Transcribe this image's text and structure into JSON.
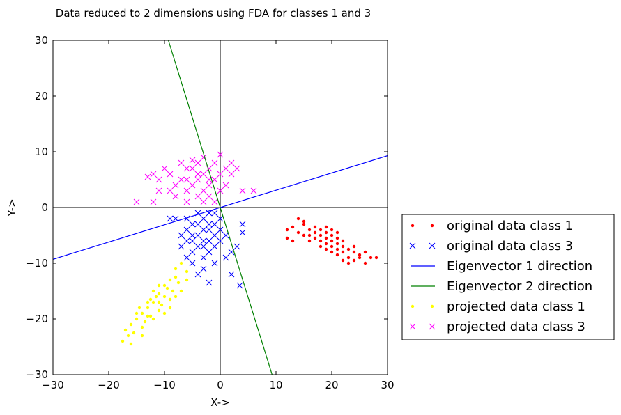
{
  "chart_data": {
    "type": "scatter",
    "title": "Data reduced to 2 dimensions using FDA for classes 1 and 3",
    "xlabel": "X->",
    "ylabel": "Y->",
    "xlim": [
      -30,
      30
    ],
    "ylim": [
      -30,
      30
    ],
    "xticks": [
      -30,
      -20,
      -10,
      0,
      10,
      20,
      30
    ],
    "yticks": [
      -30,
      -20,
      -10,
      0,
      10,
      20,
      30
    ],
    "grid": false,
    "legend_position": "outside-right",
    "series": [
      {
        "name": "original data class 1",
        "kind": "scatter",
        "marker": "dot",
        "color": "#ff0000",
        "points": [
          [
            12,
            -4
          ],
          [
            13,
            -3.5
          ],
          [
            14,
            -4.5
          ],
          [
            15,
            -3
          ],
          [
            15,
            -5
          ],
          [
            16,
            -4
          ],
          [
            16,
            -6
          ],
          [
            17,
            -4.5
          ],
          [
            17,
            -5.5
          ],
          [
            18,
            -5
          ],
          [
            18,
            -6
          ],
          [
            18,
            -4
          ],
          [
            19,
            -5.5
          ],
          [
            19,
            -6.5
          ],
          [
            19,
            -4.5
          ],
          [
            20,
            -6
          ],
          [
            20,
            -7
          ],
          [
            20,
            -5
          ],
          [
            21,
            -6.5
          ],
          [
            21,
            -7.5
          ],
          [
            21,
            -5.5
          ],
          [
            22,
            -7
          ],
          [
            22,
            -8
          ],
          [
            22,
            -6
          ],
          [
            23,
            -7.5
          ],
          [
            23,
            -9
          ],
          [
            24,
            -8
          ],
          [
            24,
            -7
          ],
          [
            25,
            -8.5
          ],
          [
            26,
            -8
          ],
          [
            27,
            -9
          ],
          [
            28,
            -9
          ],
          [
            14,
            -2
          ],
          [
            15,
            -2.5
          ],
          [
            12,
            -5.5
          ],
          [
            13,
            -6
          ],
          [
            16,
            -5
          ],
          [
            17,
            -3.5
          ],
          [
            18,
            -7
          ],
          [
            19,
            -7.5
          ],
          [
            20,
            -8
          ],
          [
            21,
            -8.5
          ],
          [
            22,
            -9.5
          ],
          [
            23,
            -10
          ],
          [
            24,
            -9.5
          ],
          [
            25,
            -9
          ],
          [
            26,
            -10
          ],
          [
            19,
            -3.5
          ],
          [
            20,
            -4
          ],
          [
            21,
            -4.5
          ]
        ]
      },
      {
        "name": "original data class 3",
        "kind": "scatter",
        "marker": "x",
        "color": "#0000ff",
        "points": [
          [
            -3,
            -2
          ],
          [
            -4,
            -3
          ],
          [
            -2,
            -4
          ],
          [
            -5,
            -5
          ],
          [
            -3,
            -6
          ],
          [
            -1,
            -5
          ],
          [
            -4,
            -7
          ],
          [
            -2,
            -8
          ],
          [
            -6,
            -6
          ],
          [
            -5,
            -3
          ],
          [
            -1,
            -3
          ],
          [
            -3,
            -4
          ],
          [
            -4,
            -5
          ],
          [
            -2,
            -6
          ],
          [
            0,
            -4
          ],
          [
            -6,
            -4
          ],
          [
            -7,
            -5
          ],
          [
            -5,
            -8
          ],
          [
            -3,
            -9
          ],
          [
            -1,
            -7
          ],
          [
            -2,
            -1
          ],
          [
            -4,
            -1
          ],
          [
            -6,
            -2
          ],
          [
            0,
            -6
          ],
          [
            1,
            -5
          ],
          [
            -7,
            -7
          ],
          [
            -3,
            -11
          ],
          [
            -5,
            -10
          ],
          [
            -1,
            -10
          ],
          [
            2,
            -8
          ],
          [
            -8,
            -2
          ],
          [
            -9,
            -2
          ],
          [
            4,
            -3
          ],
          [
            4,
            -4.5
          ],
          [
            3,
            -7
          ],
          [
            2,
            -12
          ],
          [
            -2,
            -13.5
          ],
          [
            3.5,
            -14
          ],
          [
            1,
            -9
          ],
          [
            -6,
            -9
          ],
          [
            -4,
            -12
          ],
          [
            -2,
            -3
          ],
          [
            -3,
            -7
          ],
          [
            -5,
            -6
          ],
          [
            0,
            -2
          ],
          [
            -1,
            -1
          ]
        ]
      },
      {
        "name": "Eigenvector 1 direction",
        "kind": "line",
        "color": "#0000ff",
        "points": [
          [
            -30,
            -9.3
          ],
          [
            30,
            9.3
          ]
        ]
      },
      {
        "name": "Eigenvector 2 direction",
        "kind": "line",
        "color": "#008000",
        "points": [
          [
            -9.3,
            30
          ],
          [
            9.3,
            -30
          ]
        ]
      },
      {
        "name": "projected data class 1",
        "kind": "scatter",
        "marker": "dot",
        "color": "#ffff00",
        "points": [
          [
            -7,
            -10
          ],
          [
            -8,
            -11
          ],
          [
            -6,
            -11.5
          ],
          [
            -9,
            -13
          ],
          [
            -7.5,
            -13.5
          ],
          [
            -10,
            -14
          ],
          [
            -8.5,
            -15
          ],
          [
            -11,
            -15.5
          ],
          [
            -9,
            -16.5
          ],
          [
            -12,
            -17
          ],
          [
            -10.5,
            -17.5
          ],
          [
            -13,
            -18
          ],
          [
            -11,
            -18.5
          ],
          [
            -14,
            -19
          ],
          [
            -12.5,
            -19.5
          ],
          [
            -15,
            -20
          ],
          [
            -13.5,
            -20.5
          ],
          [
            -16,
            -21
          ],
          [
            -14,
            -21.5
          ],
          [
            -17,
            -22
          ],
          [
            -15.5,
            -22.5
          ],
          [
            -16.5,
            -23
          ],
          [
            -17.5,
            -24
          ],
          [
            -10,
            -16
          ],
          [
            -11.5,
            -16
          ],
          [
            -12,
            -15
          ],
          [
            -9.5,
            -14.5
          ],
          [
            -8,
            -12.5
          ],
          [
            -13,
            -17
          ],
          [
            -14.5,
            -18
          ],
          [
            -12,
            -20
          ],
          [
            -10,
            -19
          ],
          [
            -11,
            -17
          ],
          [
            -13,
            -19.5
          ],
          [
            -15,
            -19
          ],
          [
            -6,
            -13
          ],
          [
            -7,
            -15
          ],
          [
            -14,
            -23
          ],
          [
            -16,
            -24.5
          ],
          [
            -8,
            -16
          ],
          [
            -9,
            -18
          ],
          [
            -11,
            -14
          ],
          [
            -12.5,
            -16.5
          ]
        ]
      },
      {
        "name": "projected data class 3",
        "kind": "scatter",
        "marker": "x",
        "color": "#ff00ff",
        "points": [
          [
            -4,
            5
          ],
          [
            -3,
            6
          ],
          [
            -5,
            4
          ],
          [
            -2,
            7
          ],
          [
            -6,
            3
          ],
          [
            -1,
            5
          ],
          [
            -4,
            2
          ],
          [
            -3,
            3
          ],
          [
            -5,
            7
          ],
          [
            -2,
            4
          ],
          [
            -7,
            5
          ],
          [
            -8,
            4
          ],
          [
            -9,
            6
          ],
          [
            -6,
            7
          ],
          [
            -4,
            8
          ],
          [
            -3,
            9
          ],
          [
            -1,
            8
          ],
          [
            0,
            6
          ],
          [
            1,
            7
          ],
          [
            2,
            6
          ],
          [
            -10,
            7
          ],
          [
            -11,
            5
          ],
          [
            -12,
            6
          ],
          [
            -13,
            5.5
          ],
          [
            -8,
            2
          ],
          [
            -6,
            1
          ],
          [
            -9,
            3
          ],
          [
            -11,
            3
          ],
          [
            -12,
            1
          ],
          [
            -15,
            1
          ],
          [
            -2,
            2
          ],
          [
            0,
            3
          ],
          [
            1,
            4
          ],
          [
            2,
            8
          ],
          [
            3,
            7
          ],
          [
            4,
            3
          ],
          [
            6,
            3
          ],
          [
            -7,
            8
          ],
          [
            -5,
            8.5
          ],
          [
            -3,
            1
          ],
          [
            -1,
            1
          ],
          [
            0,
            9.5
          ],
          [
            -4,
            6
          ],
          [
            -2,
            5
          ],
          [
            -6,
            5
          ]
        ]
      }
    ]
  }
}
